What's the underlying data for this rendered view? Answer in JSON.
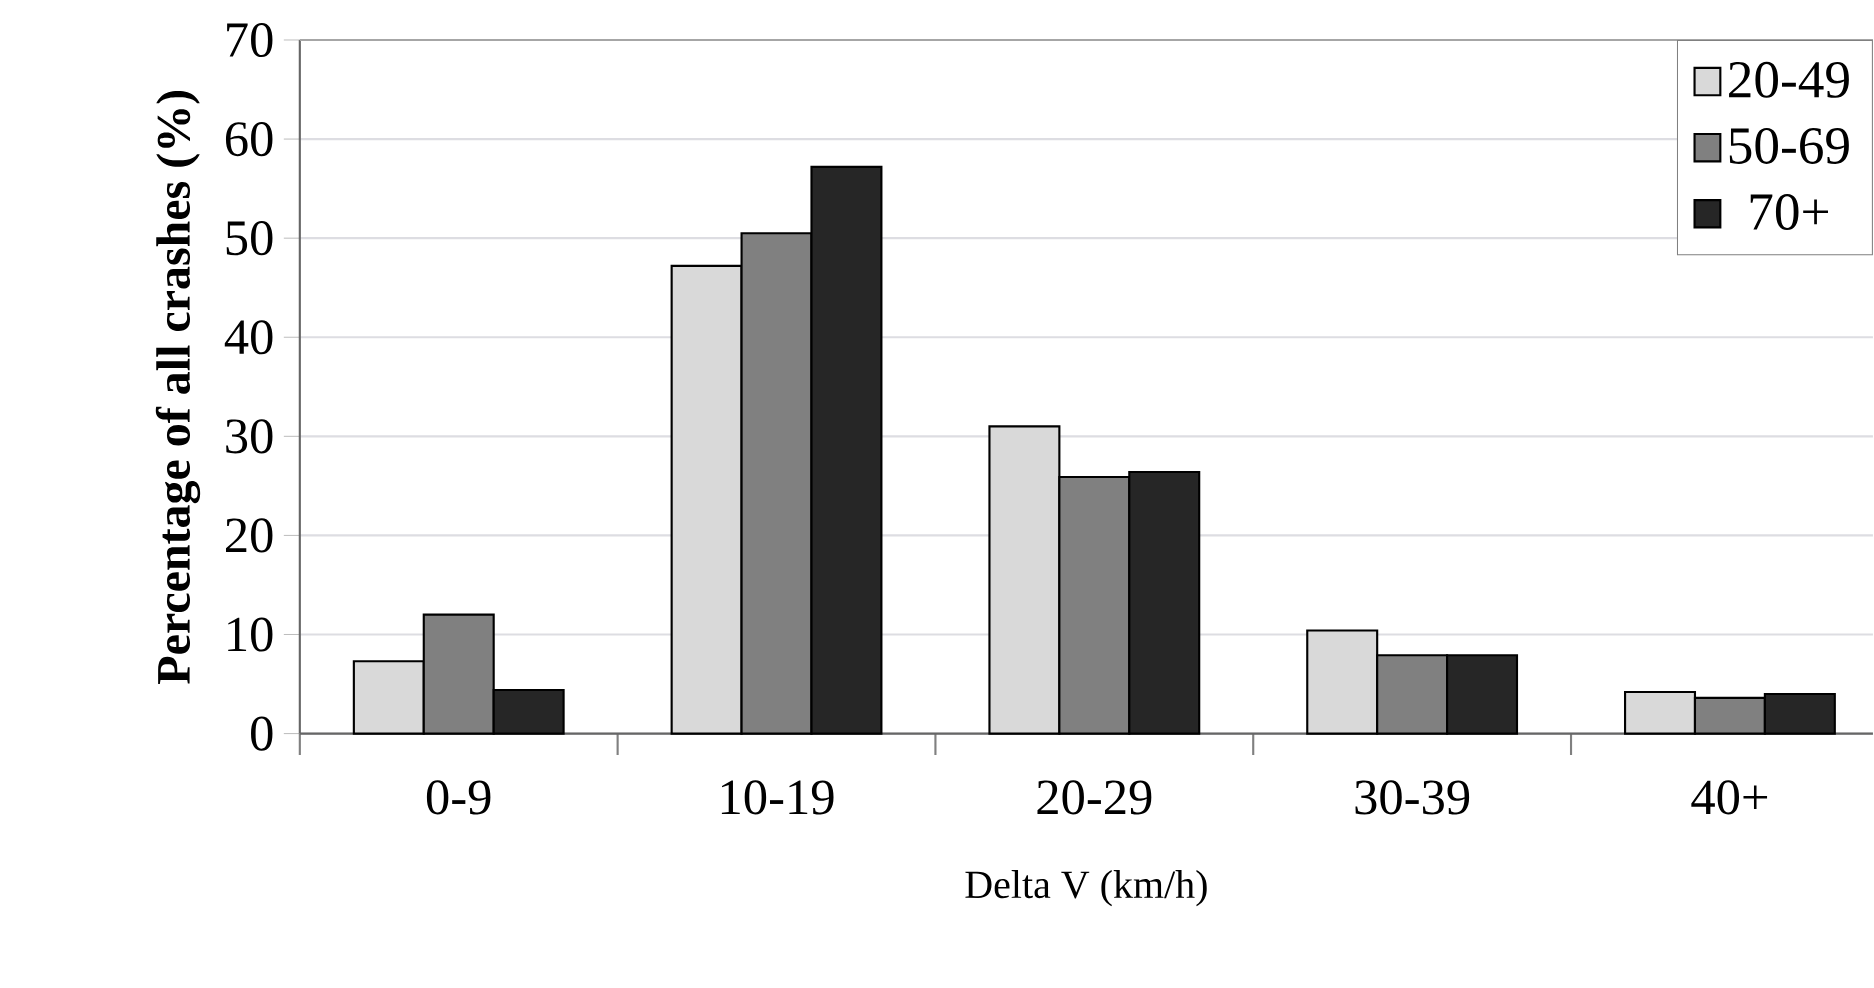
{
  "chart_data": {
    "type": "bar",
    "xlabel": "Delta V (km/h)",
    "ylabel": "Percentage of all crashes (%)",
    "categories": [
      "0-9",
      "10-19",
      "20-29",
      "30-39",
      "40+"
    ],
    "series": [
      {
        "name": "20-49",
        "color": "#d9d9d9",
        "values": [
          7.3,
          47.2,
          31.0,
          10.4,
          4.2
        ]
      },
      {
        "name": "50-69",
        "color": "#808080",
        "values": [
          12.0,
          50.5,
          25.9,
          7.9,
          3.6
        ]
      },
      {
        "name": "70+",
        "color": "#262626",
        "values": [
          4.4,
          57.2,
          26.4,
          7.9,
          4.0
        ]
      }
    ],
    "ylim": [
      0,
      70
    ],
    "yticks": [
      0,
      10,
      20,
      30,
      40,
      50,
      60,
      70
    ],
    "grid": "y",
    "legend": "top right"
  }
}
